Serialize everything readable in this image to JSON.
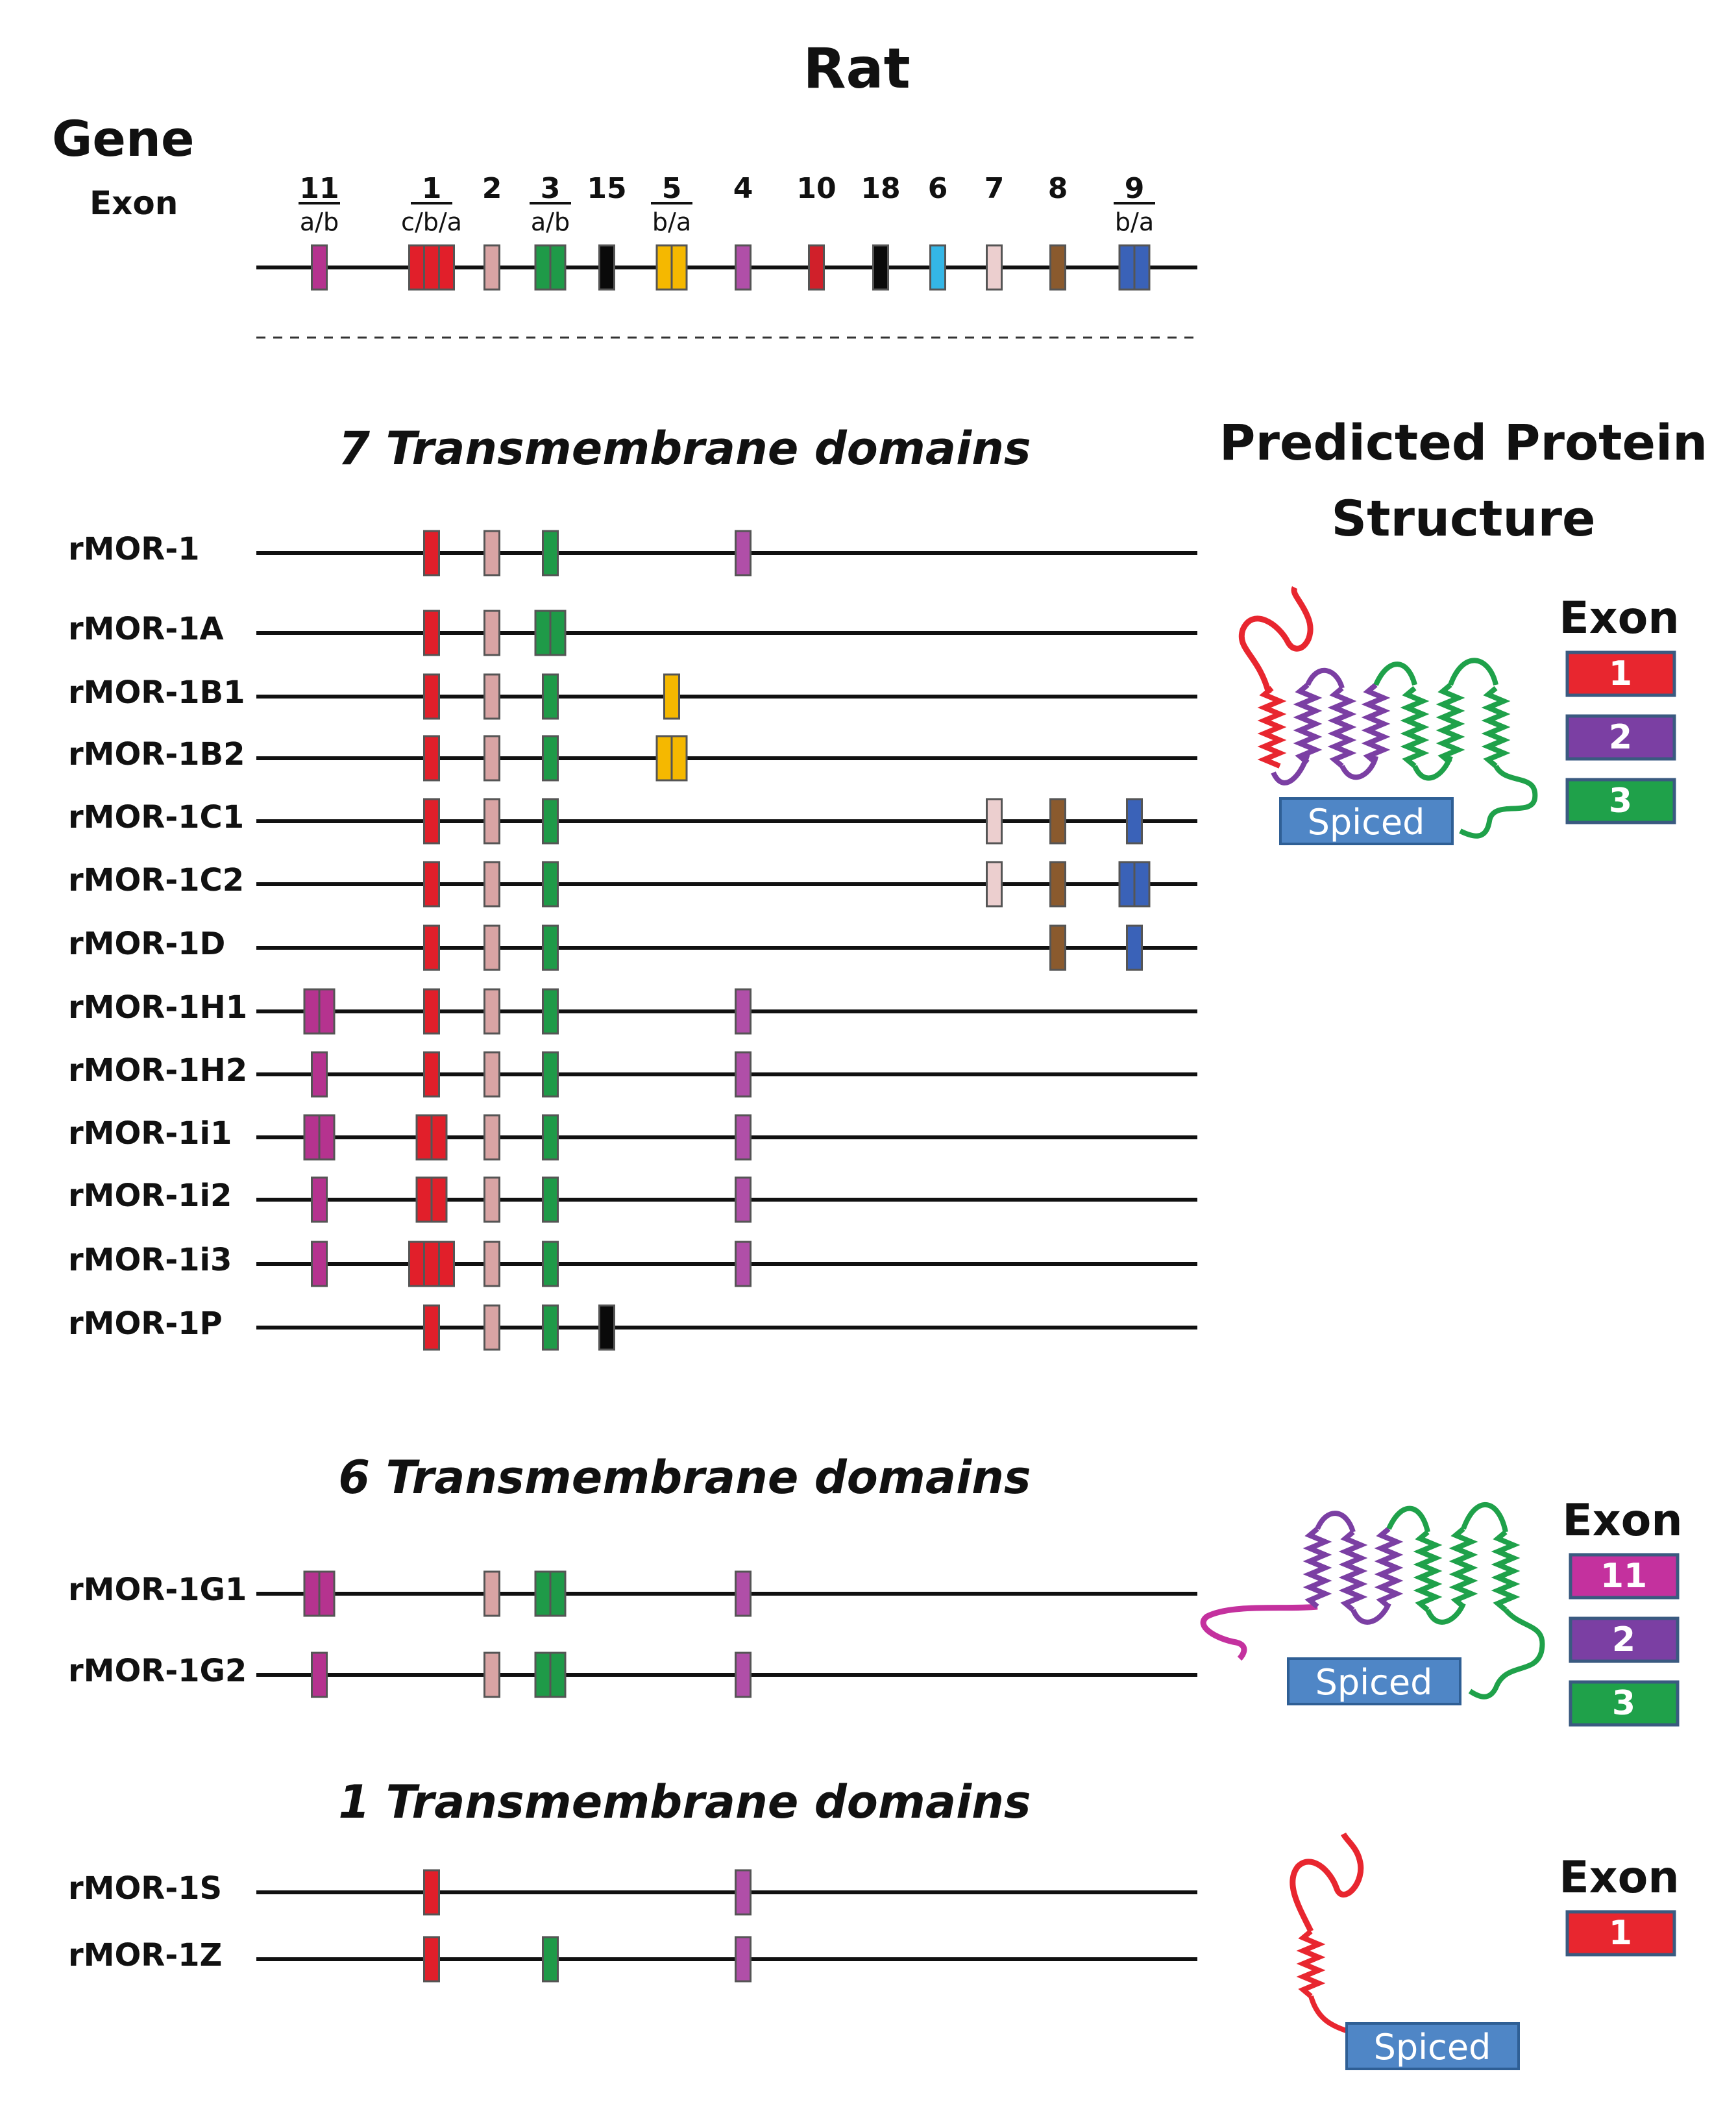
{
  "title": "Rat",
  "gene_label": "Gene",
  "exon_label": "Exon",
  "gene_exons": [
    {
      "num": "11",
      "sub": "a/b",
      "color": "exon11",
      "n": 1
    },
    {
      "num": "1",
      "sub": "c/b/a",
      "color": "exon1",
      "n": 3
    },
    {
      "num": "2",
      "sub": "",
      "color": "exon2",
      "n": 1
    },
    {
      "num": "3",
      "sub": "a/b",
      "color": "exon3",
      "n": 2
    },
    {
      "num": "15",
      "sub": "",
      "color": "exon15",
      "n": 1
    },
    {
      "num": "5",
      "sub": "b/a",
      "color": "exon5",
      "n": 2
    },
    {
      "num": "4",
      "sub": "",
      "color": "exon4",
      "n": 1
    },
    {
      "num": "10",
      "sub": "",
      "color": "exon10",
      "n": 1
    },
    {
      "num": "18",
      "sub": "",
      "color": "exon18",
      "n": 1
    },
    {
      "num": "6",
      "sub": "",
      "color": "exon6",
      "n": 1
    },
    {
      "num": "7",
      "sub": "",
      "color": "exon7",
      "n": 1
    },
    {
      "num": "8",
      "sub": "",
      "color": "exon8",
      "n": 1
    },
    {
      "num": "9",
      "sub": "b/a",
      "color": "exon9",
      "n": 2
    }
  ],
  "colors": {
    "exon11": "#b5338f",
    "exon1": "#e11f2a",
    "exon2": "#d9a4a4",
    "exon3": "#1f9a48",
    "exon15": "#0a0a0a",
    "exon5": "#f5b800",
    "exon4": "#b04fa8",
    "exon10": "#d0202a",
    "exon18": "#0a0a0a",
    "exon6": "#34b6e6",
    "exon7": "#eccfcf",
    "exon8": "#8a5a2e",
    "exon9": "#3a62b8",
    "legend1": "#e8262f",
    "legend2": "#7b3fa3",
    "legend3": "#1fa14a",
    "legend11": "#c4319e",
    "spiced": "#4f86c6"
  },
  "sections": [
    {
      "heading": "7 Transmembrane domains",
      "transcripts": [
        {
          "name": "rMOR-1",
          "exons": [
            [
              "exon1",
              1
            ],
            [
              "exon2",
              1
            ],
            [
              "exon3",
              1
            ],
            [
              "exon4",
              1
            ]
          ]
        },
        {
          "name": "rMOR-1A",
          "exons": [
            [
              "exon1",
              1
            ],
            [
              "exon2",
              1
            ],
            [
              "exon3",
              2
            ]
          ]
        },
        {
          "name": "rMOR-1B1",
          "exons": [
            [
              "exon1",
              1
            ],
            [
              "exon2",
              1
            ],
            [
              "exon3",
              1
            ],
            [
              "exon5",
              1
            ]
          ]
        },
        {
          "name": "rMOR-1B2",
          "exons": [
            [
              "exon1",
              1
            ],
            [
              "exon2",
              1
            ],
            [
              "exon3",
              1
            ],
            [
              "exon5",
              2
            ]
          ]
        },
        {
          "name": "rMOR-1C1",
          "exons": [
            [
              "exon1",
              1
            ],
            [
              "exon2",
              1
            ],
            [
              "exon3",
              1
            ],
            [
              "exon7",
              1
            ],
            [
              "exon8",
              1
            ],
            [
              "exon9",
              1
            ]
          ]
        },
        {
          "name": "rMOR-1C2",
          "exons": [
            [
              "exon1",
              1
            ],
            [
              "exon2",
              1
            ],
            [
              "exon3",
              1
            ],
            [
              "exon7",
              1
            ],
            [
              "exon8",
              1
            ],
            [
              "exon9",
              2
            ]
          ]
        },
        {
          "name": "rMOR-1D",
          "exons": [
            [
              "exon1",
              1
            ],
            [
              "exon2",
              1
            ],
            [
              "exon3",
              1
            ],
            [
              "exon8",
              1
            ],
            [
              "exon9",
              1
            ]
          ]
        },
        {
          "name": "rMOR-1H1",
          "exons": [
            [
              "exon11",
              2
            ],
            [
              "exon1",
              1
            ],
            [
              "exon2",
              1
            ],
            [
              "exon3",
              1
            ],
            [
              "exon4",
              1
            ]
          ]
        },
        {
          "name": "rMOR-1H2",
          "exons": [
            [
              "exon11",
              1
            ],
            [
              "exon1",
              1
            ],
            [
              "exon2",
              1
            ],
            [
              "exon3",
              1
            ],
            [
              "exon4",
              1
            ]
          ]
        },
        {
          "name": "rMOR-1i1",
          "exons": [
            [
              "exon11",
              2
            ],
            [
              "exon1",
              2
            ],
            [
              "exon2",
              1
            ],
            [
              "exon3",
              1
            ],
            [
              "exon4",
              1
            ]
          ]
        },
        {
          "name": "rMOR-1i2",
          "exons": [
            [
              "exon11",
              1
            ],
            [
              "exon1",
              2
            ],
            [
              "exon2",
              1
            ],
            [
              "exon3",
              1
            ],
            [
              "exon4",
              1
            ]
          ]
        },
        {
          "name": "rMOR-1i3",
          "exons": [
            [
              "exon11",
              1
            ],
            [
              "exon1",
              3
            ],
            [
              "exon2",
              1
            ],
            [
              "exon3",
              1
            ],
            [
              "exon4",
              1
            ]
          ]
        },
        {
          "name": "rMOR-1P",
          "exons": [
            [
              "exon1",
              1
            ],
            [
              "exon2",
              1
            ],
            [
              "exon3",
              1
            ],
            [
              "exon15",
              1
            ]
          ]
        }
      ]
    },
    {
      "heading": "6 Transmembrane domains",
      "transcripts": [
        {
          "name": "rMOR-1G1",
          "exons": [
            [
              "exon11",
              2
            ],
            [
              "exon2",
              1
            ],
            [
              "exon3",
              2
            ],
            [
              "exon4",
              1
            ]
          ]
        },
        {
          "name": "rMOR-1G2",
          "exons": [
            [
              "exon11",
              1
            ],
            [
              "exon2",
              1
            ],
            [
              "exon3",
              2
            ],
            [
              "exon4",
              1
            ]
          ]
        }
      ]
    },
    {
      "heading": "1 Transmembrane domains",
      "transcripts": [
        {
          "name": "rMOR-1S",
          "exons": [
            [
              "exon1",
              1
            ],
            [
              "exon4",
              1
            ]
          ]
        },
        {
          "name": "rMOR-1Z",
          "exons": [
            [
              "exon1",
              1
            ],
            [
              "exon3",
              1
            ],
            [
              "exon4",
              1
            ]
          ]
        }
      ]
    }
  ],
  "protein": {
    "heading_line1": "Predicted Protein",
    "heading_line2": "Structure",
    "legend_title": "Exon",
    "spiced_label": "Spiced",
    "legends": [
      {
        "items": [
          {
            "label": "1",
            "color": "legend1"
          },
          {
            "label": "2",
            "color": "legend2"
          },
          {
            "label": "3",
            "color": "legend3"
          }
        ]
      },
      {
        "items": [
          {
            "label": "11",
            "color": "legend11"
          },
          {
            "label": "2",
            "color": "legend2"
          },
          {
            "label": "3",
            "color": "legend3"
          }
        ]
      },
      {
        "items": [
          {
            "label": "1",
            "color": "legend1"
          }
        ]
      }
    ]
  }
}
